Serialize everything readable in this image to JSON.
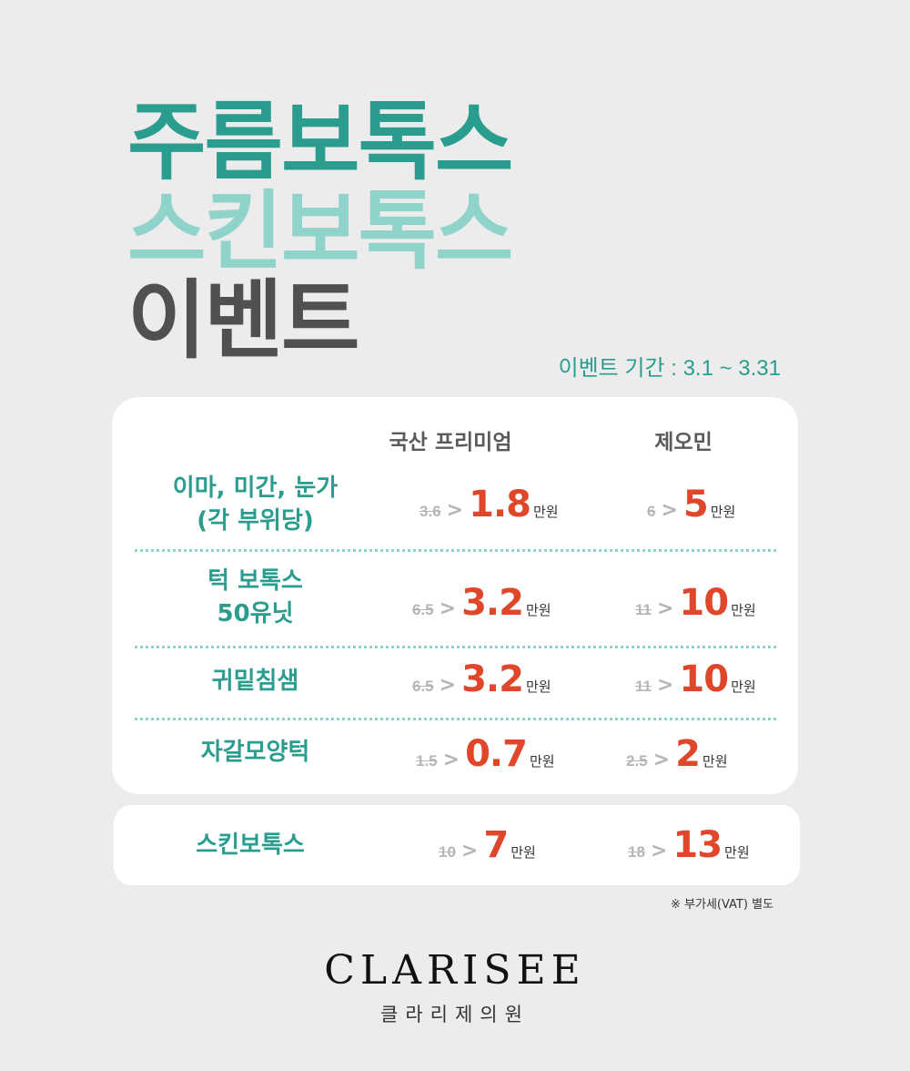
{
  "title": {
    "line1": "주름보톡스",
    "line2": "스킨보톡스",
    "line3": "이벤트"
  },
  "period": "이벤트 기간 : 3.1 ~ 3.31",
  "columns": {
    "domestic": "국산 프리미엄",
    "xeomin": "제오민"
  },
  "rows": [
    {
      "label_lines": [
        "이마, 미간, 눈가",
        "(각 부위당)"
      ],
      "domestic": {
        "old": "3.6",
        "new": "1.8",
        "unit": "만원"
      },
      "xeomin": {
        "old": "6",
        "new": "5",
        "unit": "만원"
      }
    },
    {
      "label_lines": [
        "턱 보톡스",
        "50유닛"
      ],
      "domestic": {
        "old": "6.5",
        "new": "3.2",
        "unit": "만원"
      },
      "xeomin": {
        "old": "11",
        "new": "10",
        "unit": "만원"
      }
    },
    {
      "label_lines": [
        "귀밑침샘"
      ],
      "domestic": {
        "old": "6.5",
        "new": "3.2",
        "unit": "만원"
      },
      "xeomin": {
        "old": "11",
        "new": "10",
        "unit": "만원"
      }
    },
    {
      "label_lines": [
        "자갈모양턱"
      ],
      "domestic": {
        "old": "1.5",
        "new": "0.7",
        "unit": "만원"
      },
      "xeomin": {
        "old": "2.5",
        "new": "2",
        "unit": "만원"
      }
    }
  ],
  "skin_botox": {
    "label": "스킨보톡스",
    "domestic": {
      "old": "10",
      "new": "7",
      "unit": "만원"
    },
    "xeomin": {
      "old": "18",
      "new": "13",
      "unit": "만원"
    }
  },
  "arrow_glyph": ">",
  "vat_note": "※ 부가세(VAT) 별도",
  "logo": {
    "en": "CLARISEE",
    "ko": "클라리제의원"
  },
  "colors": {
    "teal": "#2a9d8f",
    "light_teal": "#8fd3cb",
    "dark_gray": "#505050",
    "price_red": "#e0462a"
  }
}
